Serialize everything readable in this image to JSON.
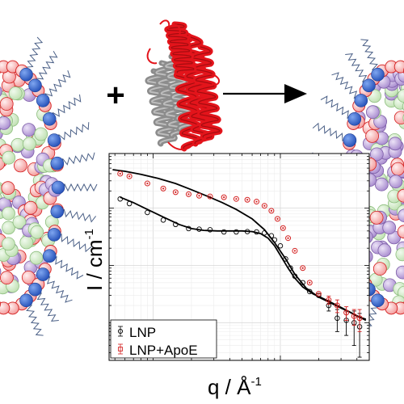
{
  "diagram": {
    "plus_symbol": "+",
    "arrow": "right-arrow",
    "left_particle": "lnp-particle",
    "protein": "apoe-protein-ribbon",
    "right_particle": "lnp-apoe-particle",
    "colors": {
      "lipid_blue": "#3b6fd8",
      "lipid_pink": "#f4a3a3",
      "lipid_red_edge": "#d42020",
      "lipid_purple": "#b79bd6",
      "lipid_green": "#cfe8c4",
      "peg_chain": "#4a5f86",
      "protein_red": "#e3141b",
      "protein_grey": "#8c8c8c"
    }
  },
  "chart_data": {
    "type": "scatter",
    "xscale": "log",
    "yscale": "log",
    "xlim": [
      0.0045,
      0.5
    ],
    "ylim": [
      0.0022,
      9
    ],
    "xlabel": "q / Å",
    "xlabel_sup": "-1",
    "ylabel": "I / cm",
    "ylabel_sup": "-1",
    "grid": true,
    "legend_position": "bottom-left",
    "series": [
      {
        "name": "LNP",
        "color": "#000000",
        "marker": "circle",
        "points": [
          [
            0.0055,
            1.45
          ],
          [
            0.0065,
            1.2
          ],
          [
            0.009,
            0.84
          ],
          [
            0.012,
            0.62
          ],
          [
            0.015,
            0.52
          ],
          [
            0.019,
            0.44
          ],
          [
            0.023,
            0.43
          ],
          [
            0.028,
            0.42
          ],
          [
            0.036,
            0.385
          ],
          [
            0.045,
            0.385
          ],
          [
            0.055,
            0.39
          ],
          [
            0.065,
            0.385
          ],
          [
            0.075,
            0.37
          ],
          [
            0.085,
            0.33
          ],
          [
            0.09,
            0.28
          ],
          [
            0.1,
            0.22
          ],
          [
            0.11,
            0.13
          ],
          [
            0.12,
            0.09
          ],
          [
            0.13,
            0.065
          ],
          [
            0.15,
            0.05
          ],
          [
            0.17,
            0.035
          ],
          [
            0.2,
            0.03
          ],
          [
            0.24,
            0.02
          ],
          [
            0.28,
            0.012
          ],
          [
            0.33,
            0.011
          ],
          [
            0.38,
            0.01
          ],
          [
            0.42,
            0.0085
          ]
        ],
        "errors": [
          0,
          0,
          0,
          0,
          0,
          0,
          0,
          0,
          0,
          0,
          0,
          0,
          0,
          0,
          0,
          0,
          0,
          0,
          0,
          0,
          0,
          0,
          0.004,
          0.005,
          0.005,
          0.006,
          0.006
        ]
      },
      {
        "name": "LNP+ApoE",
        "color": "#d42020",
        "marker": "circle",
        "points": [
          [
            0.0055,
            4.0
          ],
          [
            0.0065,
            3.6
          ],
          [
            0.009,
            2.7
          ],
          [
            0.012,
            2.2
          ],
          [
            0.015,
            1.9
          ],
          [
            0.019,
            1.75
          ],
          [
            0.023,
            1.65
          ],
          [
            0.028,
            1.6
          ],
          [
            0.036,
            1.55
          ],
          [
            0.045,
            1.45
          ],
          [
            0.055,
            1.4
          ],
          [
            0.065,
            1.3
          ],
          [
            0.075,
            1.1
          ],
          [
            0.085,
            0.9
          ],
          [
            0.095,
            0.65
          ],
          [
            0.105,
            0.45
          ],
          [
            0.115,
            0.3
          ],
          [
            0.13,
            0.18
          ],
          [
            0.15,
            0.09
          ],
          [
            0.17,
            0.05
          ],
          [
            0.2,
            0.032
          ],
          [
            0.24,
            0.025
          ],
          [
            0.28,
            0.02
          ],
          [
            0.33,
            0.015
          ],
          [
            0.38,
            0.013
          ],
          [
            0.42,
            0.012
          ]
        ],
        "errors": [
          0,
          0,
          0,
          0,
          0,
          0,
          0,
          0,
          0,
          0,
          0,
          0,
          0,
          0,
          0,
          0,
          0,
          0,
          0,
          0,
          0,
          0.004,
          0.005,
          0.004,
          0.004,
          0.005
        ]
      }
    ],
    "fits": [
      {
        "points": [
          [
            0.0048,
            4.7
          ],
          [
            0.006,
            4.4
          ],
          [
            0.008,
            3.9
          ],
          [
            0.011,
            3.3
          ],
          [
            0.015,
            2.7
          ],
          [
            0.02,
            2.1
          ],
          [
            0.027,
            1.6
          ],
          [
            0.035,
            1.25
          ],
          [
            0.045,
            0.95
          ],
          [
            0.06,
            0.65
          ],
          [
            0.075,
            0.42
          ],
          [
            0.09,
            0.25
          ],
          [
            0.11,
            0.13
          ],
          [
            0.13,
            0.07
          ],
          [
            0.16,
            0.04
          ],
          [
            0.2,
            0.028
          ],
          [
            0.25,
            0.022
          ],
          [
            0.3,
            0.018
          ],
          [
            0.36,
            0.015
          ],
          [
            0.42,
            0.0125
          ],
          [
            0.47,
            0.011
          ]
        ]
      },
      {
        "points": [
          [
            0.0055,
            1.55
          ],
          [
            0.007,
            1.25
          ],
          [
            0.009,
            0.95
          ],
          [
            0.012,
            0.7
          ],
          [
            0.016,
            0.52
          ],
          [
            0.02,
            0.44
          ],
          [
            0.025,
            0.41
          ],
          [
            0.032,
            0.4
          ],
          [
            0.04,
            0.4
          ],
          [
            0.05,
            0.4
          ],
          [
            0.06,
            0.39
          ],
          [
            0.07,
            0.36
          ],
          [
            0.08,
            0.3
          ],
          [
            0.09,
            0.22
          ],
          [
            0.1,
            0.15
          ],
          [
            0.115,
            0.09
          ],
          [
            0.13,
            0.06
          ],
          [
            0.15,
            0.042
          ],
          [
            0.18,
            0.032
          ],
          [
            0.22,
            0.026
          ],
          [
            0.28,
            0.02
          ],
          [
            0.34,
            0.016
          ],
          [
            0.4,
            0.013
          ],
          [
            0.47,
            0.0115
          ]
        ]
      }
    ]
  }
}
